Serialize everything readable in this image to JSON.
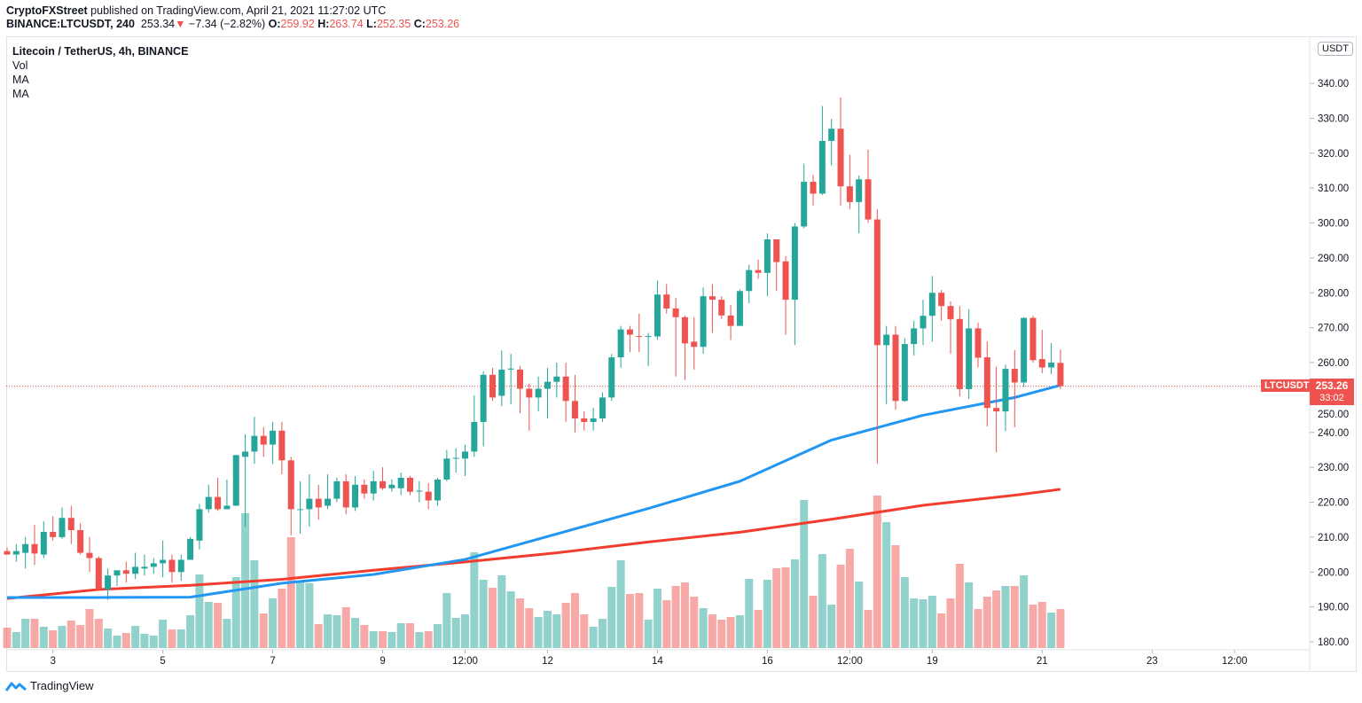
{
  "header": {
    "publisher": "CryptoFXStreet",
    "published_text": "published on TradingView.com, April 21, 2021 11:27:02 UTC",
    "symbol_interval": "BINANCE:LTCUSDT, 240",
    "last": "253.34",
    "change": "−7.34 (−2.82%)",
    "o_label": "O:",
    "o": "259.92",
    "h_label": "H:",
    "h": "263.74",
    "l_label": "L:",
    "l": "252.35",
    "c_label": "C:",
    "c": "253.26"
  },
  "legend": {
    "title": "Litecoin / TetherUS, 4h, BINANCE",
    "items": [
      "Vol",
      "MA",
      "MA"
    ]
  },
  "price_axis": {
    "unit": "USDT",
    "symbol_label": "LTCUSDT",
    "current_price": "253.26",
    "countdown": "33:02"
  },
  "branding": {
    "logo_text": "TradingView"
  },
  "colors": {
    "up": "#26a69a",
    "down": "#ef5350",
    "ma_fast": "#2196f3",
    "ma_slow": "#f23d2e",
    "grid_border": "#e0e3eb"
  },
  "chart_data": {
    "type": "candlestick",
    "interval": "4h",
    "ylim": [
      176,
      348
    ],
    "y_ticks": [
      "340.00",
      "330.00",
      "320.00",
      "310.00",
      "300.00",
      "290.00",
      "280.00",
      "270.00",
      "260.00",
      "250.00",
      "240.00",
      "230.00",
      "220.00",
      "210.00",
      "200.00",
      "190.00",
      "180.00"
    ],
    "x_ticks": [
      "3",
      "5",
      "7",
      "9",
      "12:00",
      "12",
      "14",
      "16",
      "12:00",
      "19",
      "21",
      "23",
      "12:00"
    ],
    "grid": false,
    "candles_ohlc": [
      [
        206,
        207,
        205,
        205
      ],
      [
        205,
        208,
        203,
        206
      ],
      [
        205.5,
        210,
        201,
        208
      ],
      [
        208,
        213.5,
        202,
        205.3
      ],
      [
        205,
        214.5,
        204,
        211.5
      ],
      [
        211.5,
        216,
        209,
        210
      ],
      [
        210,
        218.5,
        209.5,
        215.5
      ],
      [
        215.5,
        219,
        208,
        212
      ],
      [
        212,
        214,
        205,
        205.5
      ],
      [
        205.5,
        210,
        200,
        204
      ],
      [
        204,
        204.5,
        195,
        195
      ],
      [
        195,
        201,
        192,
        199
      ],
      [
        199,
        200.5,
        196,
        200.5
      ],
      [
        200.5,
        203,
        197,
        199.5
      ],
      [
        199.5,
        205.5,
        198,
        201.5
      ],
      [
        201,
        205,
        199,
        201.5
      ],
      [
        201.5,
        204,
        199.5,
        202.5
      ],
      [
        202.5,
        209,
        198.5,
        203.5
      ],
      [
        203.5,
        205,
        197,
        200
      ],
      [
        200,
        205,
        197.5,
        203.5
      ],
      [
        203.5,
        210,
        203.5,
        209.5
      ],
      [
        209,
        219.5,
        206.5,
        218
      ],
      [
        218,
        225,
        217,
        221.5
      ],
      [
        221.5,
        227,
        217.5,
        218
      ],
      [
        218,
        226.5,
        218,
        219
      ],
      [
        219,
        233.5,
        219,
        233.5
      ],
      [
        233,
        239.5,
        213,
        234.5
      ],
      [
        234.5,
        244.5,
        231,
        239
      ],
      [
        239,
        241.5,
        233,
        236.5
      ],
      [
        236.5,
        243,
        231,
        240.5
      ],
      [
        240.5,
        243,
        228,
        232
      ],
      [
        232,
        233,
        210.5,
        218
      ],
      [
        218,
        226,
        211,
        218
      ],
      [
        218,
        228,
        213,
        221
      ],
      [
        221,
        225,
        215,
        218.5
      ],
      [
        219,
        228,
        218,
        221
      ],
      [
        221,
        227,
        220,
        226
      ],
      [
        226,
        228,
        216.5,
        218.5
      ],
      [
        218.5,
        227.5,
        217.5,
        225
      ],
      [
        225,
        226.5,
        221,
        222.5
      ],
      [
        222.5,
        229,
        220.5,
        226
      ],
      [
        226,
        230,
        223.5,
        224
      ],
      [
        224,
        226.5,
        223,
        225
      ],
      [
        224,
        228.5,
        222,
        227
      ],
      [
        227,
        227.5,
        222,
        223
      ],
      [
        223.3,
        226,
        220,
        223.3
      ],
      [
        223,
        225.5,
        218,
        220.5
      ],
      [
        220.5,
        227,
        219,
        226.5
      ],
      [
        226.5,
        235,
        226,
        232.5
      ],
      [
        232.5,
        235.5,
        228.5,
        232.7
      ],
      [
        232.5,
        236.5,
        227.5,
        234.5
      ],
      [
        234.5,
        250.6,
        233,
        243
      ],
      [
        243,
        257.5,
        236,
        256.5
      ],
      [
        256.5,
        258.5,
        249,
        250
      ],
      [
        250.5,
        263.5,
        247.5,
        258
      ],
      [
        258,
        262.5,
        248,
        258.3
      ],
      [
        258,
        259,
        245.5,
        252.5
      ],
      [
        252.5,
        254,
        240.5,
        250
      ],
      [
        250,
        256,
        246,
        252.5
      ],
      [
        252.5,
        258.5,
        244,
        254.5
      ],
      [
        254.5,
        260,
        250,
        256
      ],
      [
        256,
        260,
        243,
        249
      ],
      [
        249,
        256.5,
        240,
        244
      ],
      [
        244,
        246,
        240.5,
        243
      ],
      [
        243,
        247,
        240.5,
        244
      ],
      [
        244,
        251.5,
        243,
        250
      ],
      [
        250,
        262.5,
        249,
        261.5
      ],
      [
        261.5,
        270.5,
        258.5,
        269.5
      ],
      [
        269.5,
        270.5,
        263,
        268
      ],
      [
        267.6,
        274,
        263,
        267.5
      ],
      [
        267.4,
        268.5,
        259,
        267.6
      ],
      [
        267.5,
        283.5,
        266.5,
        279.5
      ],
      [
        279.5,
        282.5,
        274,
        275.5
      ],
      [
        275.5,
        278.5,
        256,
        273
      ],
      [
        273,
        273.5,
        255,
        265.5
      ],
      [
        266,
        273,
        258,
        264.5
      ],
      [
        264.5,
        281.5,
        262.5,
        279
      ],
      [
        279,
        282.5,
        268.5,
        278
      ],
      [
        278,
        279,
        272.5,
        273.5
      ],
      [
        273.5,
        276.5,
        266.5,
        270.5
      ],
      [
        270.5,
        281,
        270.5,
        280.5
      ],
      [
        280.5,
        288,
        277,
        286.5
      ],
      [
        286.5,
        289.5,
        284,
        285.7
      ],
      [
        285.7,
        297,
        279,
        295.3
      ],
      [
        295.3,
        295.3,
        280.5,
        288.8
      ],
      [
        289,
        290.5,
        268,
        278
      ],
      [
        278,
        300,
        265,
        299
      ],
      [
        299,
        317,
        298.5,
        311.8
      ],
      [
        311.8,
        313.8,
        305,
        308.4
      ],
      [
        308.4,
        333.5,
        308,
        323.5
      ],
      [
        323.5,
        329.8,
        316.5,
        327
      ],
      [
        327,
        336,
        305,
        310.5
      ],
      [
        310.5,
        319.5,
        304,
        306
      ],
      [
        306,
        313.6,
        297,
        312.5
      ],
      [
        312.5,
        321,
        300,
        301
      ],
      [
        301,
        304,
        231,
        265
      ],
      [
        265,
        270.5,
        248,
        268
      ],
      [
        268,
        270.5,
        246.5,
        249
      ],
      [
        249,
        267,
        248.8,
        265.3
      ],
      [
        265.3,
        272,
        262,
        269.8
      ],
      [
        269.8,
        278,
        265,
        273.4
      ],
      [
        273.4,
        284.8,
        266,
        280
      ],
      [
        280,
        280.8,
        272,
        276.2
      ],
      [
        276.2,
        277.5,
        262.5,
        272.4
      ],
      [
        272.5,
        276.2,
        250.3,
        252.4
      ],
      [
        252.4,
        275.3,
        249.6,
        269.8
      ],
      [
        269.8,
        271.4,
        258.6,
        261.4
      ],
      [
        261.5,
        266,
        241.7,
        247
      ],
      [
        247,
        258.8,
        234.3,
        246
      ],
      [
        246,
        259.4,
        240.3,
        258.2
      ],
      [
        258.2,
        263.6,
        241.5,
        254.3
      ],
      [
        254.3,
        273,
        253,
        272.8
      ],
      [
        272.8,
        273.4,
        260,
        260.7
      ],
      [
        261,
        269.4,
        257,
        258.6
      ],
      [
        258.6,
        265.6,
        256.7,
        260
      ],
      [
        259.92,
        263.74,
        252.35,
        253.26
      ]
    ],
    "volume_relative": [
      23,
      18,
      33,
      33,
      24,
      20,
      25,
      31,
      26,
      44,
      33,
      22,
      14,
      17,
      25,
      16,
      14,
      32,
      21,
      21,
      37,
      83,
      52,
      51,
      33,
      80,
      152,
      99,
      39,
      56,
      67,
      125,
      75,
      73,
      27,
      38,
      37,
      46,
      34,
      26,
      19,
      19,
      18,
      28,
      28,
      18,
      19,
      27,
      62,
      34,
      38,
      108,
      77,
      68,
      82,
      64,
      56,
      45,
      35,
      42,
      38,
      51,
      62,
      38,
      24,
      33,
      69,
      99,
      61,
      62,
      32,
      67,
      54,
      70,
      74,
      58,
      45,
      38,
      32,
      35,
      37,
      78,
      43,
      77,
      90,
      91,
      100,
      167,
      59,
      106,
      49,
      94,
      112,
      75,
      43,
      172,
      142,
      116,
      80,
      56,
      55,
      59,
      39,
      56,
      95,
      74,
      44,
      58,
      65,
      70,
      70,
      82,
      49,
      52,
      40,
      44
    ],
    "ma_fast_every_10_bars": [
      192.7,
      192.7,
      192.8,
      196.8,
      199.3,
      203.6,
      210.9,
      218.2,
      226,
      237.8,
      244.9,
      250,
      253.5
    ],
    "ma_slow_every_10_bars": [
      192.4,
      195,
      196.2,
      197.9,
      200.5,
      202.9,
      205.5,
      208.6,
      211.4,
      215.1,
      219.1,
      222,
      223.7
    ]
  }
}
